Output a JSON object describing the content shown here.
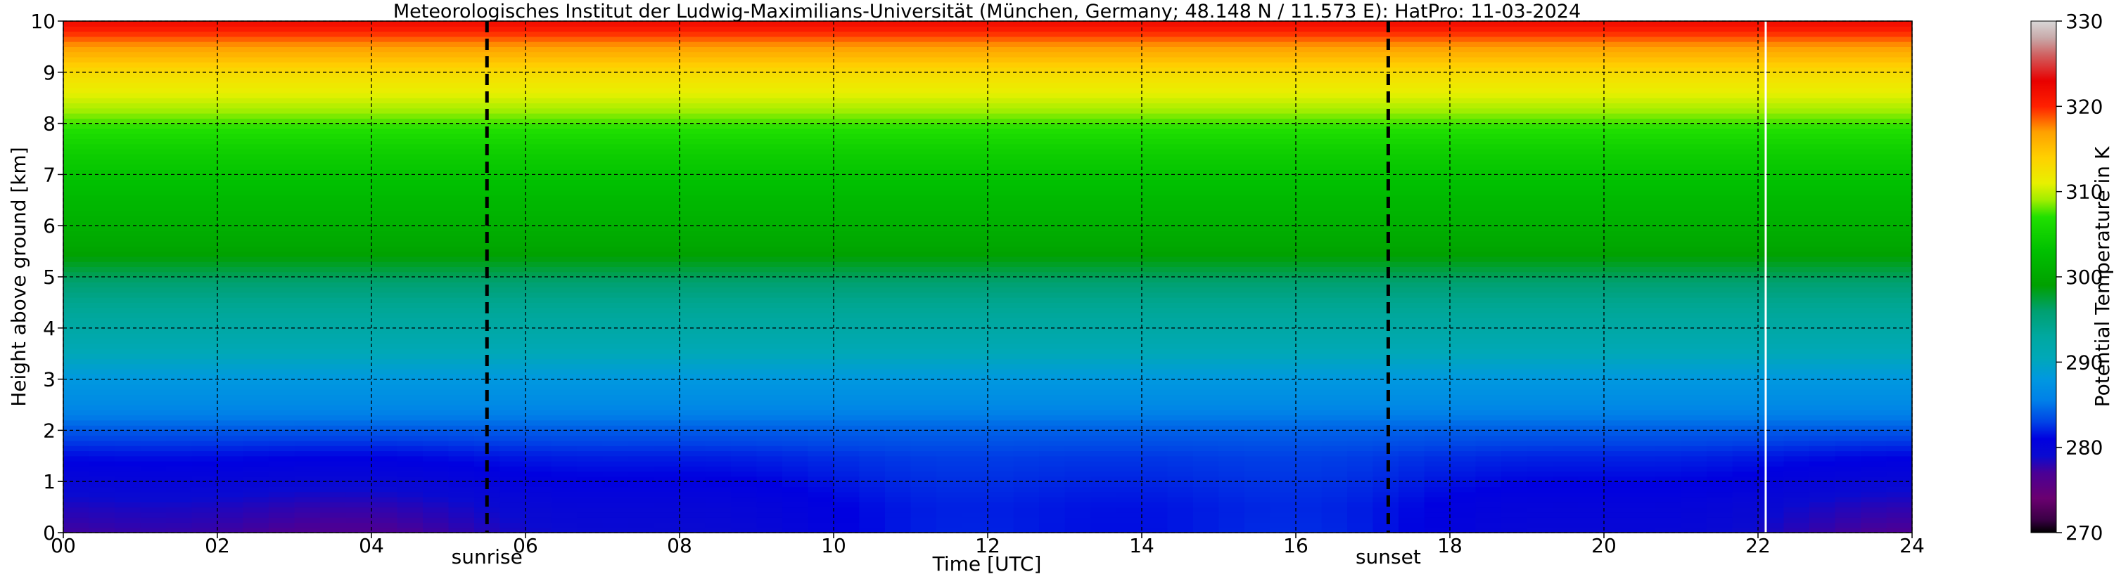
{
  "chart_data": {
    "type": "heatmap",
    "title": "Meteorologisches Institut der Ludwig-Maximilians-Universität (München, Germany; 48.148 N / 11.573 E):    HatPro: 11-03-2024",
    "xlabel": "Time [UTC]",
    "ylabel": "Height above ground [km]",
    "xlim": [
      0,
      24
    ],
    "ylim": [
      0,
      10
    ],
    "x_ticks": [
      "00",
      "02",
      "04",
      "06",
      "08",
      "10",
      "12",
      "14",
      "16",
      "18",
      "20",
      "22",
      "24"
    ],
    "y_ticks": [
      "0",
      "1",
      "2",
      "3",
      "4",
      "5",
      "6",
      "7",
      "8",
      "9",
      "10"
    ],
    "grid": true,
    "colorbar": {
      "label": "Potential Temperature in K",
      "range": [
        270,
        330
      ],
      "ticks": [
        "270",
        "280",
        "290",
        "300",
        "310",
        "320",
        "330"
      ]
    },
    "vertical_lines": [
      {
        "x": 5.5,
        "label": "sunrise"
      },
      {
        "x": 17.2,
        "label": "sunset"
      }
    ],
    "data_gap_x": 22.1,
    "profile": {
      "height_km": [
        0,
        0.5,
        1.0,
        1.5,
        2.0,
        2.5,
        3.0,
        3.5,
        4.0,
        4.5,
        5.0,
        5.5,
        6.0,
        6.5,
        7.0,
        7.5,
        8.0,
        8.5,
        9.0,
        9.5,
        10.0
      ],
      "theta_K": [
        279.5,
        280.0,
        281.0,
        282.0,
        284.0,
        286.5,
        288.0,
        290.5,
        292.5,
        294.0,
        296.5,
        299.5,
        301.0,
        302.0,
        303.5,
        305.0,
        307.5,
        310.5,
        313.0,
        317.0,
        322.0
      ]
    }
  }
}
